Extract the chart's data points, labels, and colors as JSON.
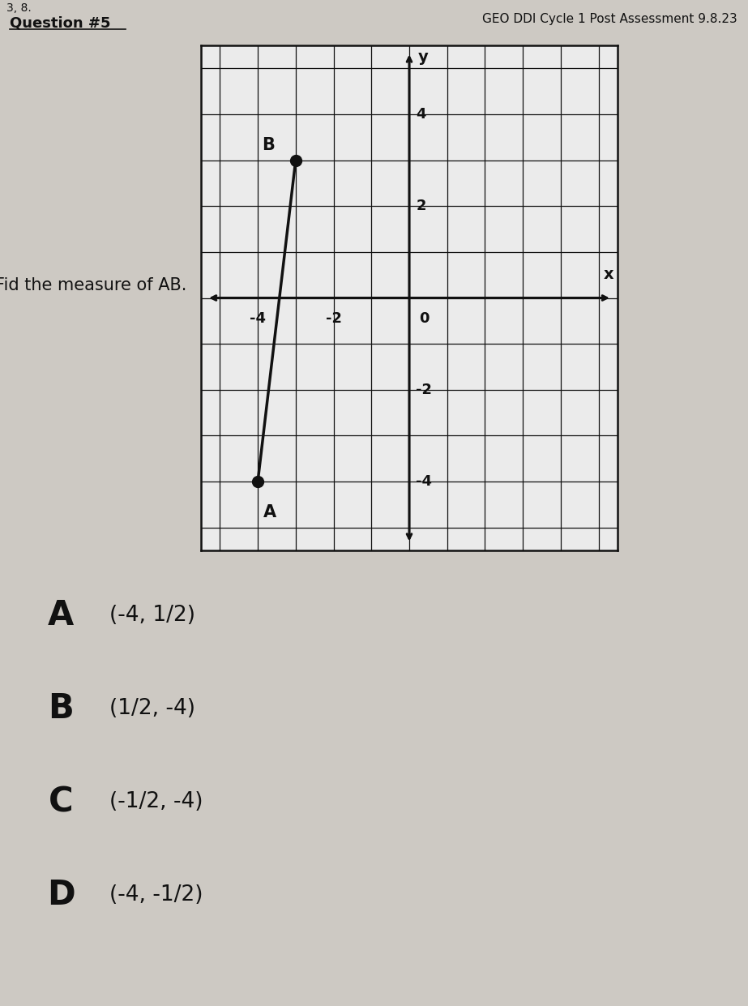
{
  "title": "GEO DDI Cycle 1 Post Assessment 9.8.23",
  "question_label": "Question #5",
  "page_label": "3, 8.",
  "question_text": "Fid the measure of AB.",
  "bg_color": "#cdc9c3",
  "grid_bg": "#ebebeb",
  "point_A": [
    -4,
    -4
  ],
  "point_B": [
    -3,
    3
  ],
  "point_A_label": "A",
  "point_B_label": "B",
  "x_axis_label": "x",
  "y_axis_label": "y",
  "x_ticks": [
    -4,
    -2,
    0
  ],
  "y_ticks": [
    -4,
    -2,
    2,
    4
  ],
  "choices": [
    {
      "letter": "A",
      "text": "(-4, 1/2)"
    },
    {
      "letter": "B",
      "text": "(1/2, -4)"
    },
    {
      "letter": "C",
      "text": "(-1/2, -4)"
    },
    {
      "letter": "D",
      "text": "(-4, -1/2)"
    }
  ],
  "grid_color": "#111111",
  "axis_color": "#111111",
  "line_color": "#111111",
  "point_color": "#111111",
  "text_color": "#111111",
  "choice_letter_fontsize": 30,
  "choice_text_fontsize": 19,
  "title_fontsize": 11,
  "question_fontsize": 15,
  "axis_tick_fontsize": 13
}
